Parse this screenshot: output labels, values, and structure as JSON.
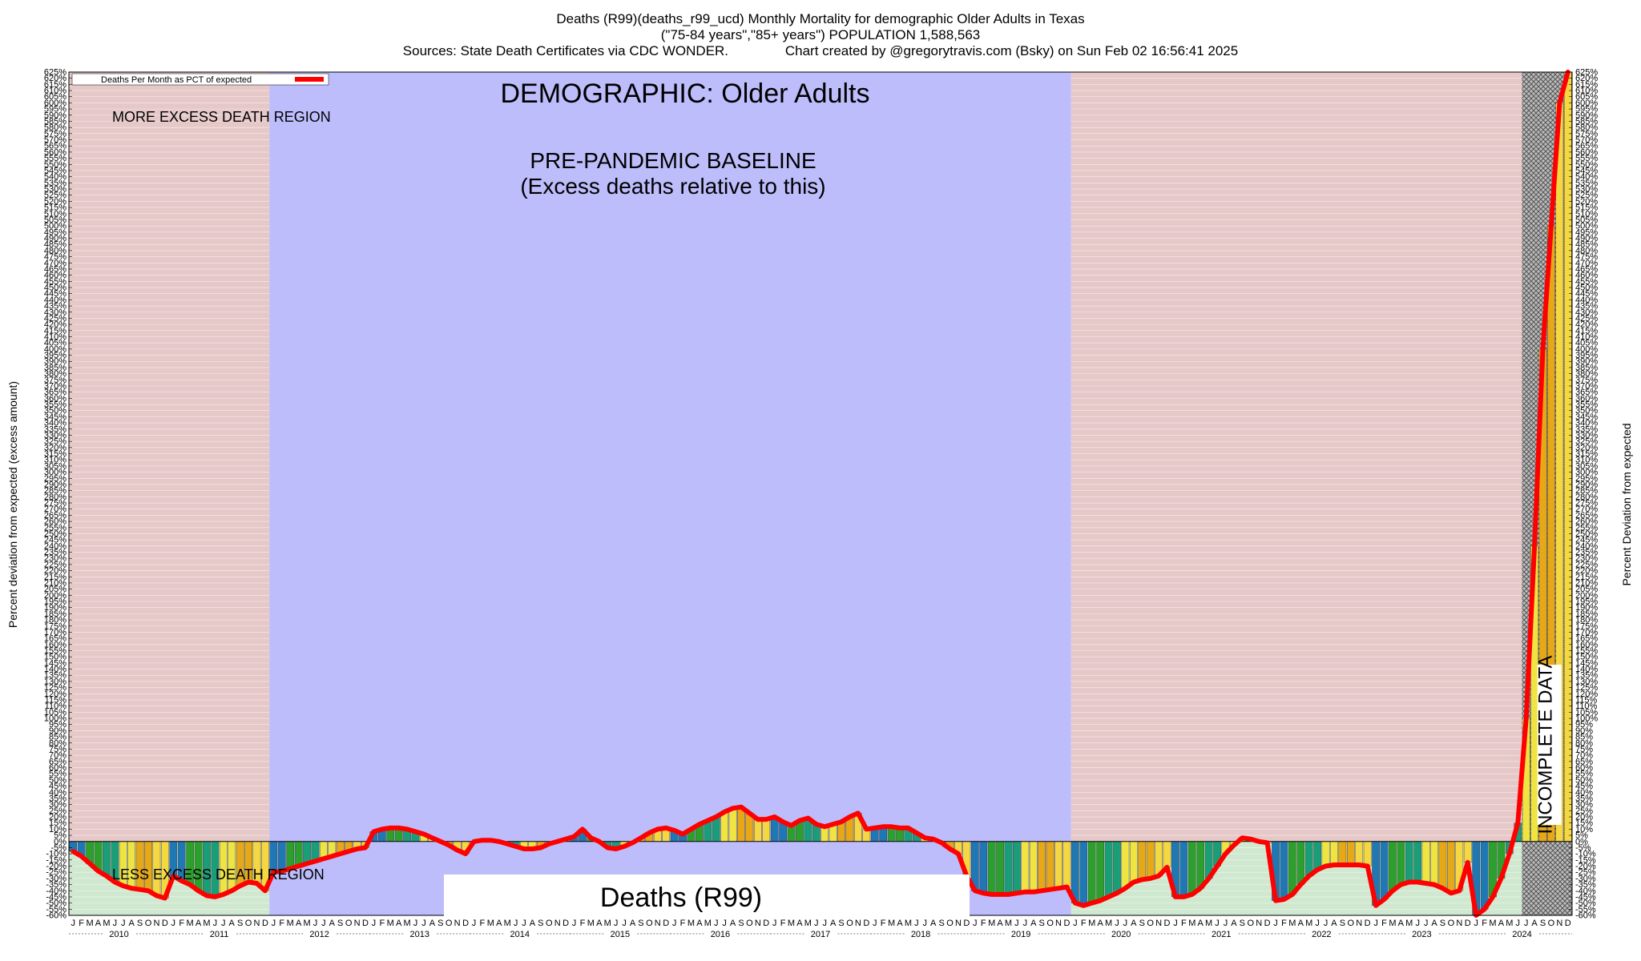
{
  "header": {
    "line1": "Deaths (R99)(deaths_r99_ucd) Monthly Mortality for demographic Older Adults in Texas",
    "line2": "(\"75-84 years\",\"85+ years\") POPULATION 1,588,563",
    "line3": "Sources: State Death Certificates via CDC WONDER.               Chart created by @gregorytravis.com (Bsky) on Sun Feb 02 16:56:41 2025"
  },
  "chart_data": {
    "type": "bar",
    "title": "DEMOGRAPHIC: Older Adults",
    "subtitle": "Deaths (R99)",
    "ylabel_left": "Percent deviation from expected (excess amount)",
    "ylabel_right": "Percent Deviation from expected",
    "ylim": [
      -60,
      625
    ],
    "ytick_step": 5,
    "ytick_suffix": "%",
    "legend": {
      "label": "Deaths Per Month as PCT of expected",
      "position": "top-left",
      "color": "#ff0000"
    },
    "annotations": {
      "more_excess": "MORE EXCESS DEATH REGION",
      "less_excess": "LESS EXCESS DEATH REGION",
      "baseline_line1": "PRE-PANDEMIC BASELINE",
      "baseline_line2": "(Excess deaths relative to this)",
      "incomplete": "INCOMPLETE DATA"
    },
    "regions": {
      "baseline_start": "2012-01",
      "baseline_end": "2019-12",
      "incomplete_start": "2024-07",
      "incomplete_end": "2024-12"
    },
    "x_start": "2010-01",
    "months": [
      "J",
      "F",
      "M",
      "A",
      "M",
      "J",
      "J",
      "A",
      "S",
      "O",
      "N",
      "D"
    ],
    "years": [
      "2010",
      "2011",
      "2012",
      "2013",
      "2014",
      "2015",
      "2016",
      "2017",
      "2018",
      "2019",
      "2020",
      "2021",
      "2022",
      "2023",
      "2024"
    ],
    "bar_colors": [
      "#1f77b4",
      "#2ca02c",
      "#1a9e77",
      "#f0e442",
      "#e6a817",
      "#f5d742"
    ],
    "colors": {
      "excess_region": "#e6c8c8",
      "baseline_region": "#bdbdfc",
      "less_region": "#cfe8cf",
      "line": "#ff0000",
      "incomplete_hatch": "#555555"
    },
    "values": [
      -8,
      -12,
      -18,
      -24,
      -28,
      -33,
      -36,
      -38,
      -39,
      -40,
      -44,
      -46,
      -28,
      -32,
      -35,
      -40,
      -44,
      -45,
      -43,
      -40,
      -36,
      -33,
      -34,
      -40,
      -25,
      -24,
      -22,
      -20,
      -18,
      -16,
      -14,
      -12,
      -10,
      -8,
      -6,
      -5,
      8,
      10,
      11,
      11,
      10,
      8,
      6,
      3,
      0,
      -3,
      -7,
      -10,
      0,
      1,
      1,
      0,
      -2,
      -4,
      -6,
      -6,
      -5,
      -2,
      0,
      2,
      4,
      10,
      3,
      0,
      -5,
      -6,
      -4,
      -1,
      3,
      7,
      10,
      11,
      9,
      6,
      10,
      14,
      17,
      20,
      24,
      27,
      28,
      23,
      18,
      18,
      20,
      16,
      13,
      17,
      19,
      14,
      12,
      14,
      16,
      20,
      23,
      10,
      11,
      12,
      12,
      11,
      11,
      7,
      3,
      2,
      -1,
      -6,
      -10,
      -28,
      -40,
      -42,
      -43,
      -43,
      -43,
      -42,
      -41,
      -41,
      -40,
      -39,
      -38,
      -37,
      -50,
      -52,
      -50,
      -48,
      -45,
      -42,
      -38,
      -33,
      -31,
      -30,
      -28,
      -21,
      -45,
      -45,
      -43,
      -38,
      -30,
      -20,
      -10,
      -3,
      3,
      2,
      0,
      -1,
      -48,
      -47,
      -43,
      -35,
      -28,
      -23,
      -20,
      -19,
      -19,
      -19,
      -19,
      -20,
      -52,
      -47,
      -40,
      -35,
      -33,
      -33,
      -34,
      -35,
      -38,
      -42,
      -40,
      -17,
      -60,
      -55,
      -45,
      -30,
      -10,
      15,
      100,
      240,
      400,
      500,
      600,
      625
    ]
  }
}
